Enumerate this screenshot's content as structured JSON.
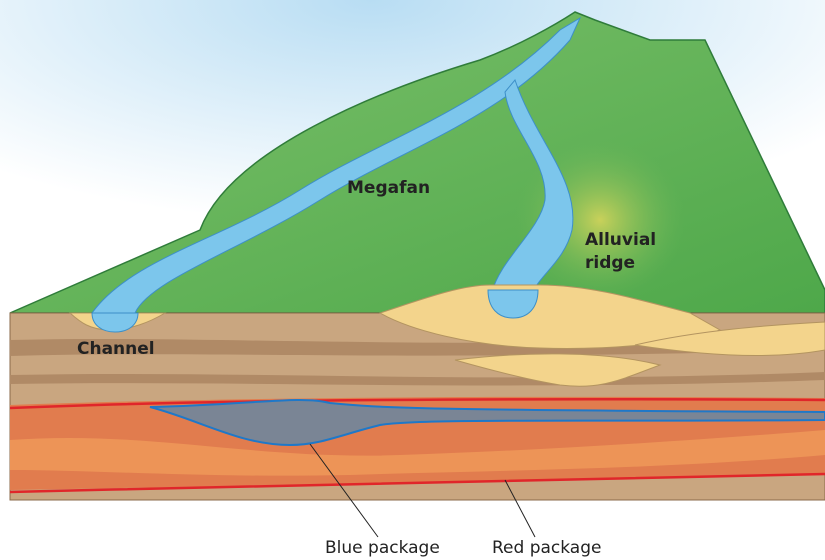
{
  "labels": {
    "megafan": "Megafan",
    "alluvial_ridge": [
      "Alluvial",
      "ridge"
    ],
    "channel": "Channel",
    "blue_package": "Blue package",
    "red_package": "Red package"
  }
}
